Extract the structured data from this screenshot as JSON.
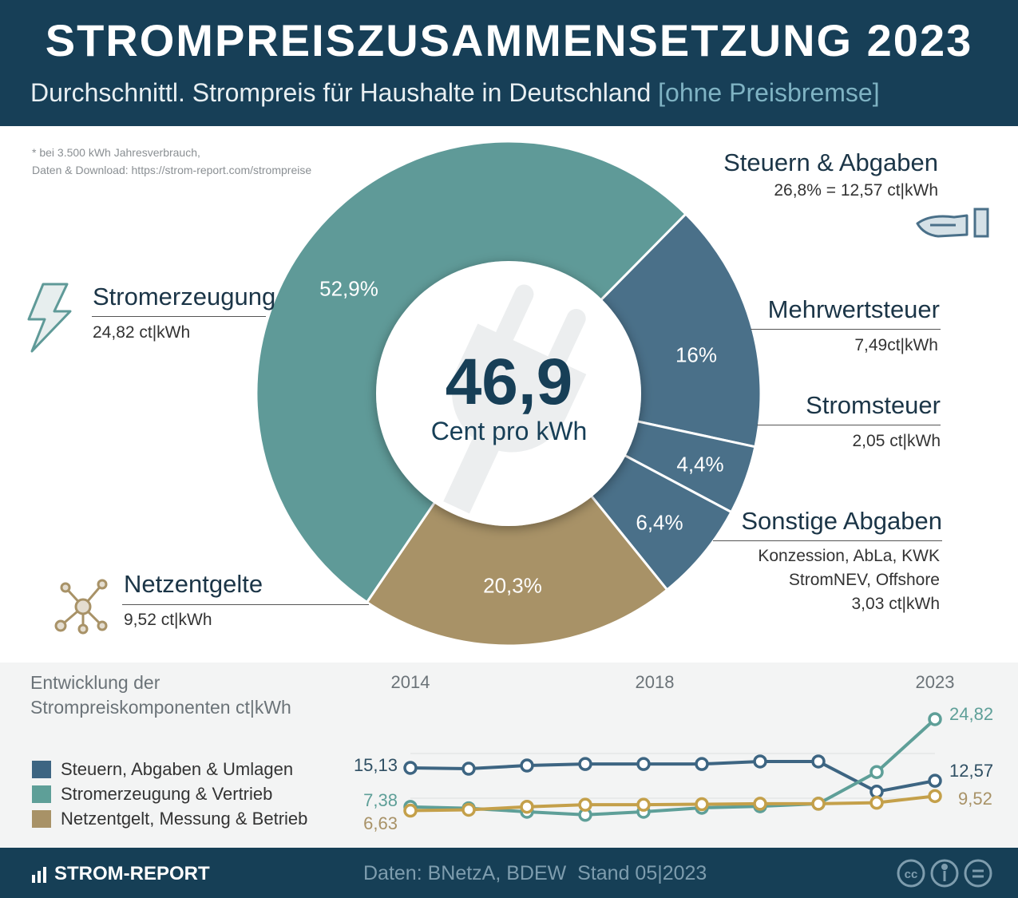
{
  "header": {
    "title": "STROMPREISZUSAMMENSETZUNG 2023",
    "subtitle": "Durchschnittl. Strompreis für Haushalte in Deutschland",
    "subtitle_bracket": "[ohne Preisbremse]"
  },
  "note": {
    "line1": "* bei 3.500 kWh Jahresverbrauch,",
    "line2": "Daten & Download: https://strom-report.com/strompreise"
  },
  "colors": {
    "header": "#173f57",
    "stromerzeugung": "#5f9a98",
    "steuern": "#4a7089",
    "netz": "#a89267",
    "line_steuern": "#3d6582",
    "line_strom": "#5e9f98",
    "line_netz": "#c4a04a"
  },
  "center": {
    "value": "46,9",
    "unit": "Cent pro kWh"
  },
  "labels": {
    "stromerzeugung": {
      "title": "Stromerzeugung",
      "value": "24,82 ct|kWh",
      "icon": "lightning-icon"
    },
    "steuern": {
      "title": "Steuern & Abgaben",
      "value": "26,8% = 12,57 ct|kWh",
      "icon": "hand-icon"
    },
    "mwst": {
      "title": "Mehrwertsteuer",
      "value": "7,49ct|kWh"
    },
    "stromsteuer": {
      "title": "Stromsteuer",
      "value": "2,05 ct|kWh"
    },
    "sonstige": {
      "title": "Sonstige Abgaben",
      "line1": "Konzession, AbLa, KWK",
      "line2": "StromNEV, Offshore",
      "value": "3,03 ct|kWh"
    },
    "netz": {
      "title": "Netzentgelte",
      "value": "9,52 ct|kWh",
      "icon": "network-icon"
    }
  },
  "chart_data": [
    {
      "type": "pie",
      "donut": true,
      "title": "46,9 Cent pro kWh",
      "slices": [
        {
          "name": "Mehrwertsteuer",
          "value": 16.0,
          "label": "16%",
          "color": "#4a7089"
        },
        {
          "name": "Stromsteuer",
          "value": 4.4,
          "label": "4,4%",
          "color": "#4a7089"
        },
        {
          "name": "Sonstige Abgaben",
          "value": 6.4,
          "label": "6,4%",
          "color": "#4a7089"
        },
        {
          "name": "Netzentgelte",
          "value": 20.3,
          "label": "20,3%",
          "color": "#a89267"
        },
        {
          "name": "Stromerzeugung",
          "value": 52.9,
          "label": "52,9%",
          "color": "#5f9a98"
        }
      ]
    },
    {
      "type": "line",
      "title": "Entwicklung der Strompreiskomponenten ct|kWh",
      "title_line1": "Entwicklung der",
      "title_line2": "Strompreiskomponenten ct|kWh",
      "x": [
        2014,
        2015,
        2016,
        2017,
        2018,
        2019,
        2020,
        2021,
        2022,
        2023
      ],
      "x_tick_labels": [
        "2014",
        "2018",
        "2023"
      ],
      "grid": true,
      "legend": "left",
      "series": [
        {
          "name": "Steuern, Abgaben & Umlagen",
          "color": "#3d6582",
          "values": [
            15.13,
            14.97,
            15.6,
            15.9,
            15.9,
            15.9,
            16.4,
            16.4,
            10.4,
            12.57
          ],
          "start_label": "15,13",
          "end_label": "12,57"
        },
        {
          "name": "Stromerzeugung & Vertrieb",
          "color": "#5e9f98",
          "values": [
            7.38,
            7.1,
            6.4,
            5.8,
            6.4,
            7.2,
            7.5,
            8.0,
            14.3,
            24.82
          ],
          "start_label": "7,38",
          "end_label": "24,82"
        },
        {
          "name": "Netzentgelt, Messung & Betrieb",
          "color": "#c4a04a",
          "values": [
            6.63,
            6.8,
            7.4,
            7.8,
            7.8,
            7.9,
            8.0,
            8.0,
            8.2,
            9.52
          ],
          "start_label": "6,63",
          "end_label": "9,52"
        }
      ]
    }
  ],
  "footer": {
    "brand": "STROM-REPORT",
    "source": "Daten: BNetzA, BDEW  Stand 05|2023",
    "license_icons": [
      "cc-icon",
      "by-icon",
      "nd-icon"
    ]
  }
}
